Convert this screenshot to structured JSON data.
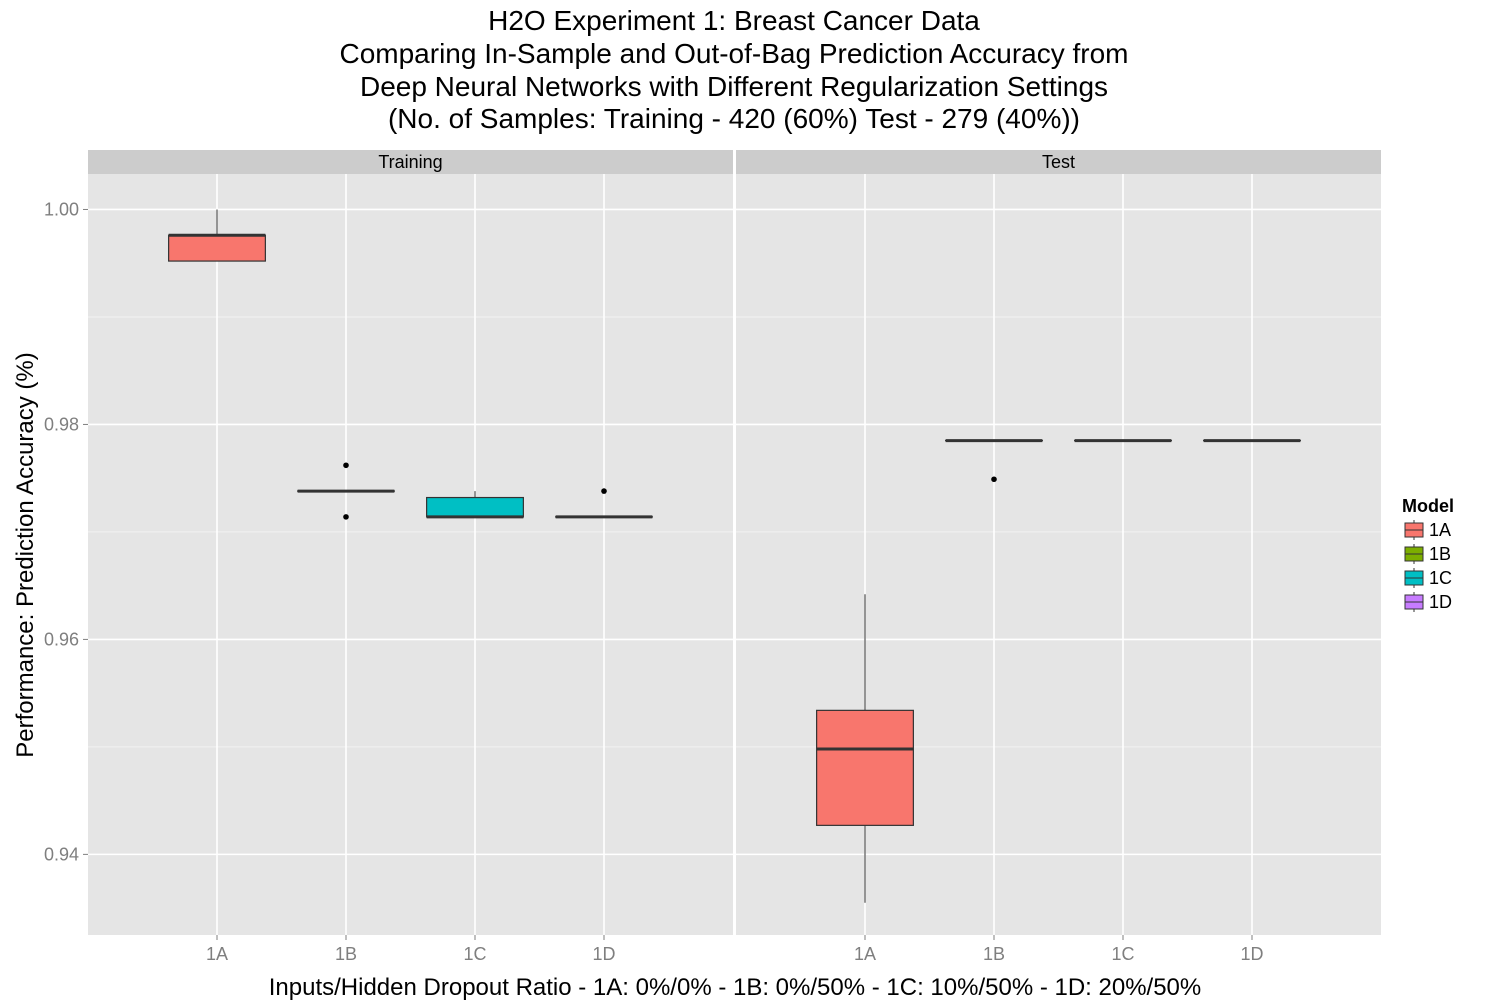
{
  "chart_data": {
    "type": "boxplot",
    "title_lines": [
      "H2O Experiment 1: Breast Cancer Data",
      "Comparing In-Sample and Out-of-Bag Prediction Accuracy from",
      "Deep Neural Networks with Different Regularization Settings",
      "(No. of Samples: Training - 420 (60%)  Test - 279 (40%))"
    ],
    "xlabel": "Inputs/Hidden Dropout Ratio - 1A: 0%/0% - 1B: 0%/50% - 1C: 10%/50% - 1D: 20%/50%",
    "ylabel": "Performance: Prediction Accuracy (%)",
    "ylim": [
      0.9325,
      1.0033
    ],
    "yticks": [
      0.94,
      0.96,
      0.98,
      1.0
    ],
    "ytick_labels": [
      "0.94",
      "0.96",
      "0.98",
      "1.00"
    ],
    "categories": [
      "1A",
      "1B",
      "1C",
      "1D"
    ],
    "legend": {
      "title": "Model",
      "position": "right",
      "entries": [
        {
          "label": "1A",
          "color": "#F8766D"
        },
        {
          "label": "1B",
          "color": "#7CAE00"
        },
        {
          "label": "1C",
          "color": "#00BFC4"
        },
        {
          "label": "1D",
          "color": "#C77CFF"
        }
      ]
    },
    "colors": {
      "panel_bg": "#E5E5E5",
      "grid_major": "#FFFFFF",
      "grid_minor": "#F2F2F2",
      "strip_bg": "#CCCCCC",
      "box_line": "#333333"
    },
    "panels": [
      {
        "label": "Training",
        "boxes": [
          {
            "category": "1A",
            "whisker_low": 0.9952,
            "q1": 0.9952,
            "median": 0.9976,
            "q3": 0.9976,
            "whisker_high": 1.0,
            "outliers": []
          },
          {
            "category": "1B",
            "whisker_low": 0.9738,
            "q1": 0.9738,
            "median": 0.9738,
            "q3": 0.9738,
            "whisker_high": 0.9738,
            "outliers": [
              0.9762,
              0.9714
            ]
          },
          {
            "category": "1C",
            "whisker_low": 0.9714,
            "q1": 0.9714,
            "median": 0.9714,
            "q3": 0.9732,
            "whisker_high": 0.9738,
            "outliers": []
          },
          {
            "category": "1D",
            "whisker_low": 0.9714,
            "q1": 0.9714,
            "median": 0.9714,
            "q3": 0.9714,
            "whisker_high": 0.9714,
            "outliers": [
              0.9738
            ]
          }
        ]
      },
      {
        "label": "Test",
        "boxes": [
          {
            "category": "1A",
            "whisker_low": 0.9355,
            "q1": 0.9427,
            "median": 0.9498,
            "q3": 0.9534,
            "whisker_high": 0.9642,
            "outliers": []
          },
          {
            "category": "1B",
            "whisker_low": 0.9785,
            "q1": 0.9785,
            "median": 0.9785,
            "q3": 0.9785,
            "whisker_high": 0.9785,
            "outliers": [
              0.9749
            ]
          },
          {
            "category": "1C",
            "whisker_low": 0.9785,
            "q1": 0.9785,
            "median": 0.9785,
            "q3": 0.9785,
            "whisker_high": 0.9785,
            "outliers": []
          },
          {
            "category": "1D",
            "whisker_low": 0.9785,
            "q1": 0.9785,
            "median": 0.9785,
            "q3": 0.9785,
            "whisker_high": 0.9785,
            "outliers": []
          }
        ]
      }
    ]
  }
}
